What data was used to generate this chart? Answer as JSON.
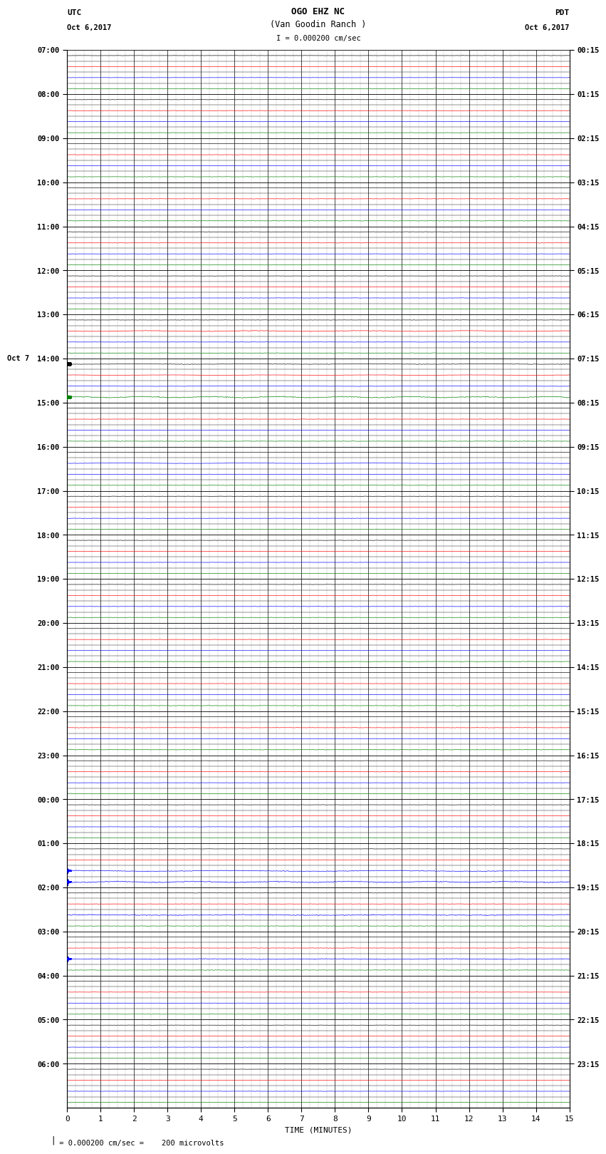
{
  "title_line1": "OGO EHZ NC",
  "title_line2": "(Van Goodin Ranch )",
  "title_line3": "I = 0.000200 cm/sec",
  "label_utc": "UTC",
  "label_date_left": "Oct 6,2017",
  "label_pdt": "PDT",
  "label_date_right": "Oct 6,2017",
  "label_date_oct7": "Oct 7",
  "xlabel": "TIME (MINUTES)",
  "footnote": " = 0.000200 cm/sec =    200 microvolts",
  "utc_labels": [
    [
      "07:00",
      0
    ],
    [
      "08:00",
      4
    ],
    [
      "09:00",
      8
    ],
    [
      "10:00",
      12
    ],
    [
      "11:00",
      16
    ],
    [
      "12:00",
      20
    ],
    [
      "13:00",
      24
    ],
    [
      "14:00",
      28
    ],
    [
      "15:00",
      32
    ],
    [
      "16:00",
      36
    ],
    [
      "17:00",
      40
    ],
    [
      "18:00",
      44
    ],
    [
      "19:00",
      48
    ],
    [
      "20:00",
      52
    ],
    [
      "21:00",
      56
    ],
    [
      "22:00",
      60
    ],
    [
      "23:00",
      64
    ],
    [
      "00:00",
      68
    ],
    [
      "01:00",
      72
    ],
    [
      "02:00",
      76
    ],
    [
      "03:00",
      80
    ],
    [
      "04:00",
      84
    ],
    [
      "05:00",
      88
    ],
    [
      "06:00",
      92
    ]
  ],
  "pdt_labels": [
    [
      "00:15",
      0
    ],
    [
      "01:15",
      4
    ],
    [
      "02:15",
      8
    ],
    [
      "03:15",
      12
    ],
    [
      "04:15",
      16
    ],
    [
      "05:15",
      20
    ],
    [
      "06:15",
      24
    ],
    [
      "07:15",
      28
    ],
    [
      "08:15",
      32
    ],
    [
      "09:15",
      36
    ],
    [
      "10:15",
      40
    ],
    [
      "11:15",
      44
    ],
    [
      "12:15",
      48
    ],
    [
      "13:15",
      52
    ],
    [
      "14:15",
      56
    ],
    [
      "15:15",
      60
    ],
    [
      "16:15",
      64
    ],
    [
      "17:15",
      68
    ],
    [
      "18:15",
      72
    ],
    [
      "19:15",
      76
    ],
    [
      "20:15",
      80
    ],
    [
      "21:15",
      84
    ],
    [
      "22:15",
      88
    ],
    [
      "23:15",
      92
    ]
  ],
  "n_rows": 96,
  "n_groups": 24,
  "rows_per_group": 4,
  "minutes_per_row": 15,
  "bg_color": "#ffffff",
  "trace_colors": [
    "black",
    "red",
    "blue",
    "green"
  ],
  "oct7_row": 68,
  "seed": 42
}
